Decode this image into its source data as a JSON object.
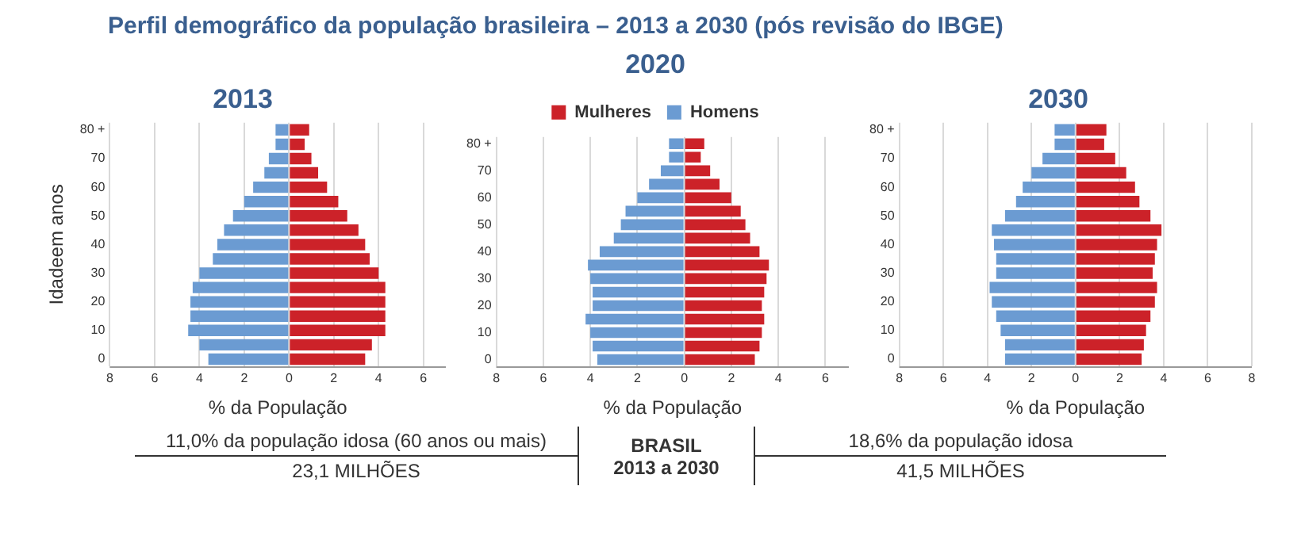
{
  "chart_data": [
    {
      "type": "bar",
      "orientation": "horizontal",
      "stacked": true,
      "title": "2013",
      "xlabel": "% da População",
      "ylabel": "Idadeem anos",
      "grid": "x",
      "legend": false,
      "categories": [
        "80 +",
        null,
        "70",
        null,
        "60",
        null,
        "50",
        null,
        "40",
        null,
        "30",
        null,
        "20",
        null,
        "10",
        null,
        "0"
      ],
      "xlim": [
        -8,
        7
      ],
      "xticks": [
        {
          "value": -8,
          "label": "8"
        },
        {
          "value": -6,
          "label": "6"
        },
        {
          "value": -4,
          "label": "4"
        },
        {
          "value": -2,
          "label": "2"
        },
        0,
        2,
        4,
        6
      ],
      "series": [
        {
          "color": "#cc2229",
          "values": [
            0.9,
            0.7,
            1.0,
            1.3,
            1.7,
            2.2,
            2.6,
            3.1,
            3.4,
            3.6,
            4.0,
            4.3,
            4.3,
            4.3,
            4.3,
            3.7,
            3.4
          ]
        },
        {
          "color": "#6b9bd2",
          "values": [
            -0.6,
            -0.6,
            -0.9,
            -1.1,
            -1.6,
            -2.0,
            -2.5,
            -2.9,
            -3.2,
            -3.4,
            -4.0,
            -4.3,
            -4.4,
            -4.4,
            -4.5,
            -4.0,
            -3.6
          ]
        }
      ]
    },
    {
      "type": "bar",
      "orientation": "horizontal",
      "stacked": true,
      "title": "2020",
      "xlabel": "% da População",
      "grid": "x",
      "legend": "top",
      "categories": [
        "80 +",
        null,
        "70",
        null,
        "60",
        null,
        "50",
        null,
        "40",
        null,
        "30",
        null,
        "20",
        null,
        "10",
        null,
        "0"
      ],
      "xlim": [
        -8,
        7
      ],
      "xticks": [
        {
          "value": -8,
          "label": "8"
        },
        {
          "value": -6,
          "label": "6"
        },
        {
          "value": -4,
          "label": "4"
        },
        {
          "value": -2,
          "label": "2"
        },
        0,
        2,
        4,
        6
      ],
      "series": [
        {
          "name": "Mulheres",
          "color": "#cc2229",
          "values": [
            0.85,
            0.7,
            1.1,
            1.5,
            2.0,
            2.4,
            2.6,
            2.8,
            3.2,
            3.6,
            3.5,
            3.4,
            3.3,
            3.4,
            3.3,
            3.2,
            3.0
          ]
        },
        {
          "name": "Homens",
          "color": "#6b9bd2",
          "values": [
            -0.65,
            -0.65,
            -1.0,
            -1.5,
            -2.0,
            -2.5,
            -2.7,
            -3.0,
            -3.6,
            -4.1,
            -4.0,
            -3.9,
            -3.9,
            -4.2,
            -4.0,
            -3.9,
            -3.7
          ]
        }
      ]
    },
    {
      "type": "bar",
      "orientation": "horizontal",
      "stacked": true,
      "title": "2030",
      "xlabel": "% da População",
      "grid": "x",
      "legend": false,
      "categories": [
        "80 +",
        null,
        "70",
        null,
        "60",
        null,
        "50",
        null,
        "40",
        null,
        "30",
        null,
        "20",
        null,
        "10",
        null,
        "0"
      ],
      "xlim": [
        -8,
        8
      ],
      "xticks": [
        {
          "value": -8,
          "label": "8"
        },
        {
          "value": -6,
          "label": "6"
        },
        {
          "value": -4,
          "label": "4"
        },
        {
          "value": -2,
          "label": "2"
        },
        0,
        2,
        4,
        6,
        8
      ],
      "series": [
        {
          "color": "#cc2229",
          "values": [
            1.4,
            1.3,
            1.8,
            2.3,
            2.7,
            2.9,
            3.4,
            3.9,
            3.7,
            3.6,
            3.5,
            3.7,
            3.6,
            3.4,
            3.2,
            3.1,
            3.0
          ]
        },
        {
          "color": "#6b9bd2",
          "values": [
            -0.95,
            -0.95,
            -1.5,
            -2.0,
            -2.4,
            -2.7,
            -3.2,
            -3.8,
            -3.7,
            -3.6,
            -3.6,
            -3.9,
            -3.8,
            -3.6,
            -3.4,
            -3.2,
            -3.2
          ]
        }
      ]
    },
    {
      "type": "other",
      "title": "Perfil demográfico da população brasileira – 2013 a 2030 (pós revisão do IBGE)",
      "annotations": [
        "11,0% da população idosa (60 anos ou mais)",
        "BRASIL",
        "2013 a 2030",
        "18,6% da população idosa",
        "23,1 MILHÕES",
        "41,5 MILHÕES"
      ]
    }
  ]
}
